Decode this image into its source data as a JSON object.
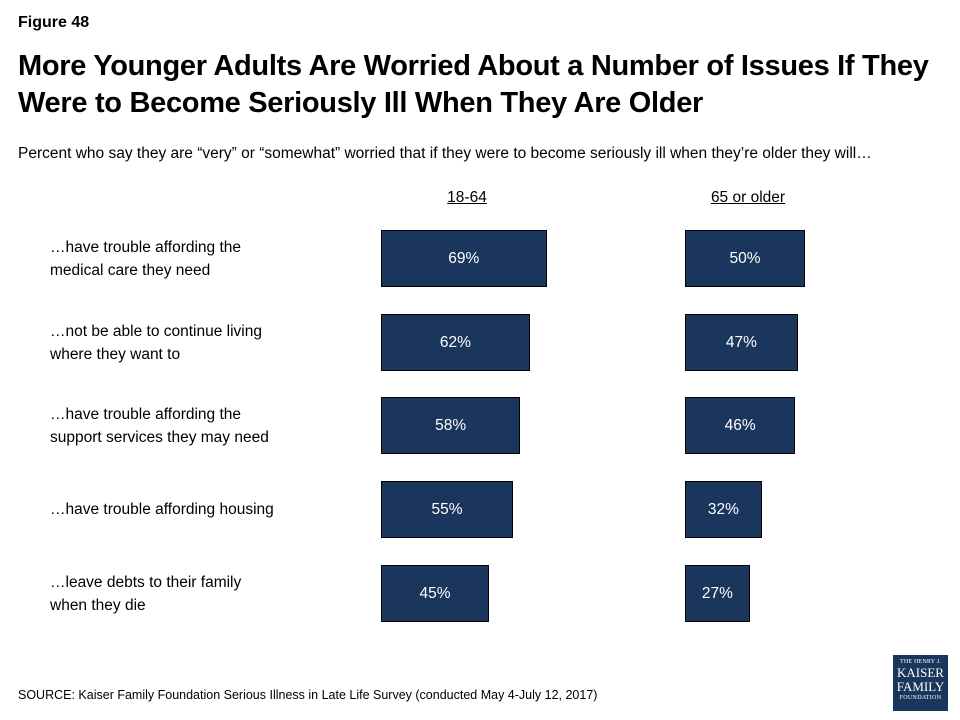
{
  "figure_label": "Figure 48",
  "chart_data": {
    "type": "bar",
    "title": "More Younger Adults Are Worried About a Number of Issues If They Were to Become Seriously Ill When They Are Older",
    "subtitle": "Percent who say they are “very” or “somewhat” worried that if they were to become seriously ill when they’re older they will…",
    "categories": [
      "…have trouble affording the medical care they need",
      "…not be able to continue living where they want to",
      "…have trouble affording the support services they may need",
      "…have trouble affording housing",
      "…leave debts to their family when they die"
    ],
    "series": [
      {
        "name": "18-64",
        "values": [
          69,
          62,
          58,
          55,
          45
        ],
        "labels": [
          "69%",
          "62%",
          "58%",
          "55%",
          "45%"
        ]
      },
      {
        "name": "65 or older",
        "values": [
          50,
          47,
          46,
          32,
          27
        ],
        "labels": [
          "50%",
          "47%",
          "46%",
          "32%",
          "27%"
        ]
      }
    ],
    "bar_color": "#1b365d",
    "ylim": [
      0,
      100
    ]
  },
  "source": "SOURCE: Kaiser Family Foundation Serious Illness in Late Life Survey (conducted May 4-July 12, 2017)",
  "logo": {
    "line1": "THE HENRY J.",
    "line2": "KAISER",
    "line3": "FAMILY",
    "line4": "FOUNDATION"
  }
}
